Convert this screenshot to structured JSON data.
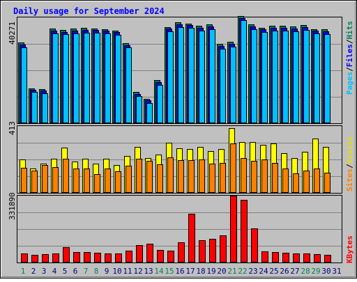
{
  "chart_data": [
    {
      "type": "bar",
      "title": "Daily usage for September 2024",
      "panel": "top",
      "ymax_label": "40271",
      "ylim": [
        0,
        40271
      ],
      "categories": [
        "1",
        "2",
        "3",
        "4",
        "5",
        "6",
        "7",
        "8",
        "9",
        "10",
        "11",
        "12",
        "13",
        "14",
        "15",
        "16",
        "17",
        "18",
        "19",
        "20",
        "21",
        "22",
        "23",
        "24",
        "25",
        "26",
        "27",
        "28",
        "29",
        "30",
        "31"
      ],
      "series": [
        {
          "name": "Hits",
          "color": "#00805A",
          "values": [
            30000,
            12500,
            12300,
            35200,
            34800,
            35200,
            35500,
            35300,
            35100,
            34500,
            29800,
            11100,
            8600,
            15500,
            35800,
            37600,
            37200,
            36200,
            36800,
            29400,
            30200,
            40100,
            36700,
            35600,
            36300,
            36300,
            36100,
            36500,
            35100,
            34900,
            null
          ]
        },
        {
          "name": "Files",
          "color": "#0000FF",
          "values": [
            29500,
            12100,
            11900,
            34700,
            34300,
            34800,
            35000,
            34900,
            34600,
            34100,
            29200,
            10700,
            8200,
            15000,
            35400,
            37100,
            36700,
            35700,
            36300,
            28900,
            29700,
            39600,
            36200,
            35200,
            35800,
            35800,
            35600,
            36000,
            34600,
            34500,
            null
          ]
        },
        {
          "name": "Pages",
          "color": "#00C0FF",
          "values": [
            29000,
            11800,
            11500,
            34300,
            33800,
            34300,
            34500,
            34400,
            34100,
            33600,
            28800,
            10300,
            7800,
            14600,
            34900,
            36600,
            36200,
            35200,
            35800,
            28400,
            29200,
            39100,
            35700,
            34700,
            35300,
            35300,
            35100,
            35500,
            34100,
            34000,
            null
          ]
        }
      ],
      "legend": [
        "Pages",
        "/",
        "Files",
        "/",
        "Hits"
      ],
      "legend_placement": "right"
    },
    {
      "type": "bar",
      "panel": "middle",
      "ymax_label": "413",
      "ylim": [
        0,
        413
      ],
      "categories": [
        "1",
        "2",
        "3",
        "4",
        "5",
        "6",
        "7",
        "8",
        "9",
        "10",
        "11",
        "12",
        "13",
        "14",
        "15",
        "16",
        "17",
        "18",
        "19",
        "20",
        "21",
        "22",
        "23",
        "24",
        "25",
        "26",
        "27",
        "28",
        "29",
        "30",
        "31"
      ],
      "series": [
        {
          "name": "Visits",
          "color": "#FFFF00",
          "values": [
            205,
            152,
            180,
            210,
            280,
            195,
            210,
            180,
            210,
            170,
            230,
            285,
            215,
            235,
            310,
            275,
            270,
            285,
            260,
            270,
            400,
            315,
            315,
            295,
            305,
            245,
            215,
            255,
            335,
            285,
            null
          ]
        },
        {
          "name": "Sites",
          "color": "#FF8000",
          "values": [
            163,
            148,
            182,
            168,
            218,
            160,
            160,
            125,
            160,
            143,
            175,
            218,
            208,
            185,
            228,
            210,
            210,
            215,
            190,
            195,
            315,
            222,
            205,
            215,
            195,
            158,
            128,
            145,
            158,
            135,
            null
          ]
        }
      ],
      "legend": [
        "Sites",
        "/",
        "Visits"
      ],
      "legend_placement": "right"
    },
    {
      "type": "bar",
      "panel": "bottom",
      "ymax_label": "331890",
      "ylim": [
        0,
        331890
      ],
      "categories": [
        "1",
        "2",
        "3",
        "4",
        "5",
        "6",
        "7",
        "8",
        "9",
        "10",
        "11",
        "12",
        "13",
        "14",
        "15",
        "16",
        "17",
        "18",
        "19",
        "20",
        "21",
        "22",
        "23",
        "24",
        "25",
        "26",
        "27",
        "28",
        "29",
        "30",
        "31"
      ],
      "series": [
        {
          "name": "KBytes",
          "color": "#FF0000",
          "values": [
            45000,
            37000,
            40000,
            44000,
            77000,
            53000,
            51000,
            48000,
            46000,
            46000,
            58000,
            88000,
            92000,
            62000,
            60000,
            100000,
            242000,
            112000,
            117000,
            136000,
            331890,
            310000,
            170000,
            56000,
            53000,
            50000,
            46000,
            44000,
            40000,
            37000,
            null
          ]
        }
      ],
      "legend": [
        "KBytes"
      ],
      "legend_placement": "right"
    }
  ],
  "day_label_colors": [
    "#00805A",
    "#000080",
    "#000080",
    "#000080",
    "#000080",
    "#000080",
    "#00805A",
    "#00805A",
    "#000080",
    "#000080",
    "#000080",
    "#000080",
    "#000080",
    "#00805A",
    "#00805A",
    "#000080",
    "#000080",
    "#000080",
    "#000080",
    "#000080",
    "#00805A",
    "#00805A",
    "#000080",
    "#000080",
    "#000080",
    "#000080",
    "#000080",
    "#00805A",
    "#00805A",
    "#000080",
    "#000080"
  ]
}
